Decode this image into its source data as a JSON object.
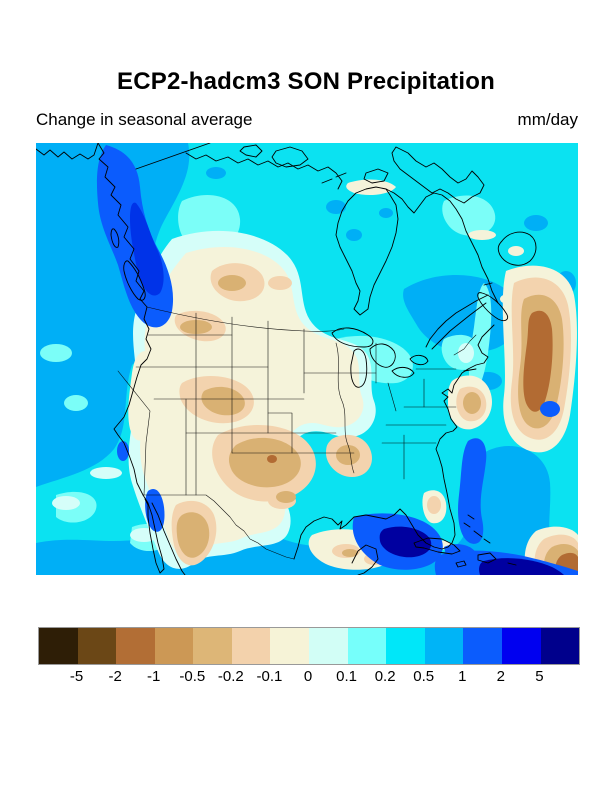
{
  "figure": {
    "title": "ECP2-hadcm3 SON Precipitation",
    "subtitle": "Change in seasonal average",
    "units_label": "mm/day"
  },
  "chart_data": {
    "type": "heatmap",
    "subtype": "filled-contour-map",
    "title": "ECP2-hadcm3 SON Precipitation",
    "subtitle": "Change in seasonal average",
    "units": "mm/day",
    "region": "North America (Pacific to western Atlantic, Mexico/Caribbean to Arctic islands)",
    "variable": "Change in seasonal average precipitation",
    "season": "SON",
    "model": "ECP2-hadcm3",
    "legend_position": "bottom",
    "grid": false,
    "colorbar": {
      "orientation": "horizontal",
      "levels": [
        -5,
        -2,
        -1,
        -0.5,
        -0.2,
        -0.1,
        0,
        0.1,
        0.2,
        0.5,
        1,
        2,
        5
      ],
      "tick_labels": [
        "-5",
        "-2",
        "-1",
        "-0.5",
        "-0.2",
        "-0.1",
        "0",
        "0.1",
        "0.2",
        "0.5",
        "1",
        "2",
        "5"
      ],
      "colors": [
        "#2e1e06",
        "#6b4716",
        "#b26e35",
        "#cc9855",
        "#ddb677",
        "#f3d2ac",
        "#f6f3d7",
        "#d2fef6",
        "#76fffb",
        "#00e7f9",
        "#00b4f7",
        "#0b5cfd",
        "#0000f0",
        "#00008c"
      ],
      "border_color": "#999999"
    },
    "map_palette": {
      "ocean_cyan": "#0be2f1",
      "sky_blue": "#00aff6",
      "royal_blue": "#0b5cfd",
      "deep_blue": "#0033e8",
      "navy": "#0000a0",
      "light_cyan": "#7bfef8",
      "pale_cyan": "#d5fef9",
      "cream": "#f5f3da",
      "peach": "#f3d3ae",
      "tan": "#d9b173",
      "sienna": "#b26b33",
      "coastline": "#000000"
    },
    "regions_depicted": [
      {
        "area": "BC / SE Alaska coast",
        "anomaly_mm_day": "+1 to +2 (royal blue band)"
      },
      {
        "area": "NE Pacific offshore",
        "anomaly_mm_day": "+0.5 to +1 (sky blue)"
      },
      {
        "area": "Central Canada, Hudson Bay, Arctic",
        "anomaly_mm_day": "+0.2 to +0.5 (cyan)"
      },
      {
        "area": "Quebec / eastern Ontario",
        "anomaly_mm_day": "+0.5 to +1 (sky blue band)"
      },
      {
        "area": "Canadian prairies and US Rockies/plains",
        "anomaly_mm_day": "-0.2 to 0 (cream/peach)"
      },
      {
        "area": "US Southwest, Texas, northern Mexico",
        "anomaly_mm_day": "-0.5 to -0.2 (tan)"
      },
      {
        "area": "Arkansas / Louisiana and mid-Atlantic coast",
        "anomaly_mm_day": "-0.5 to -0.2 (tan spots)"
      },
      {
        "area": "Gulf of Mexico and Caribbean",
        "anomaly_mm_day": "+2 to >5 (blue/navy bands)"
      },
      {
        "area": "Western Atlantic along right edge",
        "anomaly_mm_day": "-1 to -2 (tan/sienna band)"
      }
    ]
  }
}
